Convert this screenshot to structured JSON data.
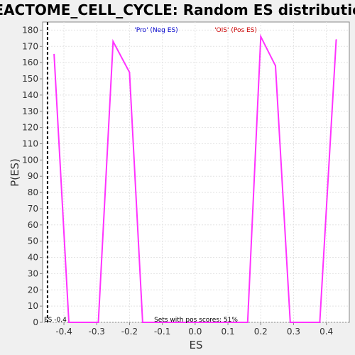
{
  "chart_data": {
    "type": "line",
    "title": "REACTOME_CELL_CYCLE: Random ES distribution",
    "xlabel": "ES",
    "ylabel": "P(ES)",
    "xlim": [
      -0.465,
      0.47
    ],
    "ylim": [
      0,
      185
    ],
    "x_ticks": [
      -0.4,
      -0.3,
      -0.2,
      -0.1,
      0.0,
      0.1,
      0.2,
      0.3,
      0.4
    ],
    "x_tick_labels": [
      "-0.4",
      "-0.3",
      "-0.2",
      "-0.1",
      "0.0",
      "0.1",
      "0.2",
      "0.3",
      "0.4"
    ],
    "y_ticks": [
      0,
      10,
      20,
      30,
      40,
      50,
      60,
      70,
      80,
      90,
      100,
      110,
      120,
      130,
      140,
      150,
      160,
      170,
      180
    ],
    "y_tick_labels": [
      "0",
      "10",
      "20",
      "30",
      "40",
      "50",
      "60",
      "70",
      "80",
      "90",
      "100",
      "110",
      "120",
      "130",
      "140",
      "150",
      "160",
      "170",
      "180"
    ],
    "grid": true,
    "series": [
      {
        "color": "#ff33ff",
        "x": [
          -0.43,
          -0.385,
          -0.295,
          -0.25,
          -0.2,
          -0.16,
          0.16,
          0.2,
          0.245,
          0.29,
          0.38,
          0.43
        ],
        "y": [
          165,
          0,
          0,
          173,
          154,
          0,
          0,
          176,
          158,
          0,
          0,
          174
        ]
      }
    ],
    "observed_es": {
      "x": -0.45,
      "label": "ES -0.4",
      "style": "dashed",
      "color": "#000000"
    },
    "legend": [
      {
        "label": "'Pro' (Neg ES)",
        "color": "#0000cc"
      },
      {
        "label": "'OIS' (Pos ES)",
        "color": "#cc0000"
      }
    ],
    "annotation": "Sets with pos scores: 51%"
  }
}
